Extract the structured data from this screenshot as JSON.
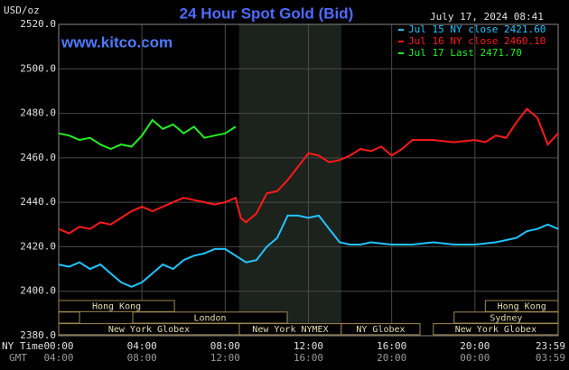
{
  "chart_data": {
    "type": "line",
    "title": "24 Hour Spot Gold (Bid)",
    "y_label": "USD/oz",
    "site": "www.kitco.com",
    "timestamp": "July 17, 2024 08:41",
    "ylim": [
      2380,
      2520
    ],
    "yticks": [
      {
        "value": 2380,
        "label": "2380.0"
      },
      {
        "value": 2400,
        "label": "2400.0"
      },
      {
        "value": 2420,
        "label": "2420.0"
      },
      {
        "value": 2440,
        "label": "2440.0"
      },
      {
        "value": 2460,
        "label": "2460.0"
      },
      {
        "value": 2480,
        "label": "2480.0"
      },
      {
        "value": 2500,
        "label": "2500.0"
      },
      {
        "value": 2520,
        "label": "2520.0"
      }
    ],
    "xlim": [
      0,
      24
    ],
    "xticks": [
      {
        "value": 0,
        "label": "00:00"
      },
      {
        "value": 4,
        "label": "04:00"
      },
      {
        "value": 8,
        "label": "08:00"
      },
      {
        "value": 12,
        "label": "12:00"
      },
      {
        "value": 16,
        "label": "16:00"
      },
      {
        "value": 20,
        "label": "20:00"
      },
      {
        "value": 23.983,
        "label": "23:59"
      }
    ],
    "xticks_gmt": [
      "04:00",
      "08:00",
      "12:00",
      "16:00",
      "20:00",
      "00:00",
      "03:59"
    ],
    "x_row_labels": [
      "NY Time",
      "GMT"
    ],
    "grid": true,
    "shade": [
      8.67,
      13.58
    ],
    "sessions": [
      [
        {
          "label": "Hong Kong",
          "start": 0,
          "end": 5.56
        },
        {
          "label": "Hong Kong",
          "start": 20.5,
          "end": 24
        }
      ],
      [
        {
          "start": 0,
          "end": 1
        },
        {
          "label": "London",
          "start": 3.56,
          "end": 10.98
        },
        {
          "label": "Sydney",
          "start": 19,
          "end": 24
        }
      ],
      [
        {
          "label": "New York Globex",
          "start": 0,
          "end": 8.68
        },
        {
          "label": "New York NYMEX",
          "start": 8.68,
          "end": 13.58
        },
        {
          "label": "NY Globex",
          "start": 13.58,
          "end": 17.36
        },
        {
          "label": "New York Globex",
          "start": 18,
          "end": 24
        }
      ]
    ],
    "series": [
      {
        "name": "Jul 15 NY close 2421.60",
        "color": "#22c4ff",
        "x": [
          0,
          0.5,
          1,
          1.5,
          2,
          2.5,
          3,
          3.5,
          4,
          4.5,
          5,
          5.5,
          6,
          6.5,
          7,
          7.5,
          8,
          8.5,
          9,
          9.5,
          10,
          10.5,
          11,
          11.5,
          12,
          12.5,
          13,
          13.5,
          14,
          14.5,
          15,
          16,
          17,
          18,
          19,
          20,
          21,
          22,
          22.5,
          23,
          23.5,
          24
        ],
        "values": [
          2412,
          2411,
          2413,
          2410,
          2412,
          2408,
          2404,
          2402,
          2404,
          2408,
          2412,
          2410,
          2414,
          2416,
          2417,
          2419,
          2419,
          2416,
          2413,
          2414,
          2420,
          2424,
          2434,
          2434,
          2433,
          2434,
          2428,
          2422,
          2421,
          2421,
          2422,
          2421,
          2421,
          2422,
          2421,
          2421,
          2422,
          2424,
          2427,
          2428,
          2430,
          2428
        ]
      },
      {
        "name": "Jul 16 NY close 2460.10",
        "color": "#ff1a1a",
        "x": [
          0,
          0.5,
          1,
          1.5,
          2,
          2.5,
          3,
          3.5,
          4,
          4.5,
          5,
          5.5,
          6,
          6.5,
          7,
          7.5,
          8,
          8.5,
          8.75,
          9,
          9.5,
          10,
          10.5,
          11,
          11.5,
          12,
          12.5,
          13,
          13.5,
          14,
          14.5,
          15,
          15.5,
          16,
          16.5,
          17,
          18,
          19,
          20,
          20.5,
          21,
          21.5,
          22,
          22.5,
          23,
          23.5,
          24
        ],
        "values": [
          2428,
          2426,
          2429,
          2428,
          2431,
          2430,
          2433,
          2436,
          2438,
          2436,
          2438,
          2440,
          2442,
          2441,
          2440,
          2439,
          2440,
          2442,
          2433,
          2431,
          2435,
          2444,
          2445,
          2450,
          2456,
          2462,
          2461,
          2458,
          2459,
          2461,
          2464,
          2463,
          2465,
          2461,
          2464,
          2468,
          2468,
          2467,
          2468,
          2467,
          2470,
          2469,
          2476,
          2482,
          2478,
          2466,
          2471
        ]
      },
      {
        "name": "Jul 17 Last 2471.70",
        "color": "#22ee22",
        "x": [
          0,
          0.5,
          1,
          1.5,
          2,
          2.5,
          3,
          3.5,
          4,
          4.5,
          5,
          5.5,
          6,
          6.5,
          7,
          7.5,
          8,
          8.5
        ],
        "values": [
          2471,
          2470,
          2468,
          2469,
          2466,
          2464,
          2466,
          2465,
          2470,
          2477,
          2473,
          2475,
          2471,
          2474,
          2469,
          2470,
          2471,
          2474
        ]
      }
    ]
  }
}
